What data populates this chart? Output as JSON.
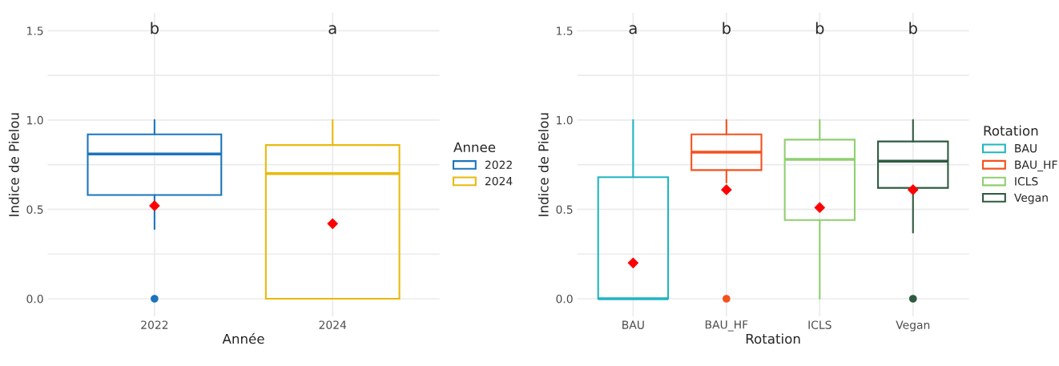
{
  "chart_data": [
    {
      "type": "box",
      "xlabel": "Année",
      "ylabel": "Indice de Pielou",
      "legend_title": "Annee",
      "legend": "right",
      "grid": true,
      "categories": [
        "2022",
        "2024"
      ],
      "series": [
        {
          "name": "2022",
          "color": "#1b75bc",
          "boxes": [
            {
              "low": 0.39,
              "q1": 0.58,
              "median": 0.81,
              "q3": 0.92,
              "high": 1.0,
              "mean": 0.52,
              "outliers": [
                0
              ]
            },
            null
          ]
        },
        {
          "name": "2024",
          "color": "#e8b90f",
          "boxes": [
            null,
            {
              "low": 0,
              "q1": 0,
              "median": 0.7,
              "q3": 0.86,
              "high": 1.0,
              "mean": 0.42
            }
          ]
        }
      ],
      "ylim": [
        -0.1,
        1.6
      ],
      "yticks": [
        {
          "value": 0,
          "label": "0.0"
        },
        {
          "value": 0.25,
          "label": null
        },
        {
          "value": 0.5,
          "label": "0.5"
        },
        {
          "value": 0.75,
          "label": null
        },
        {
          "value": 1,
          "label": "1.0"
        },
        {
          "value": 1.25,
          "label": null
        },
        {
          "value": 1.5,
          "label": "1.5"
        }
      ],
      "annotations": [
        "b",
        "a"
      ]
    },
    {
      "type": "box",
      "xlabel": "Rotation",
      "ylabel": "Indice de Pielou",
      "legend_title": "Rotation",
      "legend": "right",
      "grid": true,
      "categories": [
        "BAU",
        "BAU_HF",
        "ICLS",
        "Vegan"
      ],
      "series": [
        {
          "name": "BAU",
          "color": "#1fb5c1",
          "boxes": [
            {
              "low": 0,
              "q1": 0,
              "median": 0,
              "q3": 0.68,
              "high": 1.0,
              "mean": 0.2
            },
            null,
            null,
            null
          ]
        },
        {
          "name": "BAU_HF",
          "color": "#f4511e",
          "boxes": [
            null,
            {
              "low": 0.65,
              "q1": 0.72,
              "median": 0.82,
              "q3": 0.92,
              "high": 1.0,
              "mean": 0.61,
              "outliers": [
                0
              ]
            },
            null,
            null
          ]
        },
        {
          "name": "ICLS",
          "color": "#8fcf6f",
          "boxes": [
            null,
            null,
            {
              "low": 0,
              "q1": 0.44,
              "median": 0.78,
              "q3": 0.89,
              "high": 1.0,
              "mean": 0.51
            },
            null
          ]
        },
        {
          "name": "Vegan",
          "color": "#2f5a40",
          "boxes": [
            null,
            null,
            null,
            {
              "low": 0.37,
              "q1": 0.62,
              "median": 0.77,
              "q3": 0.88,
              "high": 1.0,
              "mean": 0.61,
              "outliers": [
                0
              ]
            }
          ]
        }
      ],
      "ylim": [
        -0.1,
        1.6
      ],
      "yticks": [
        {
          "value": 0,
          "label": "0.0"
        },
        {
          "value": 0.25,
          "label": null
        },
        {
          "value": 0.5,
          "label": "0.5"
        },
        {
          "value": 0.75,
          "label": null
        },
        {
          "value": 1,
          "label": "1.0"
        },
        {
          "value": 1.25,
          "label": null
        },
        {
          "value": 1.5,
          "label": "1.5"
        }
      ],
      "annotations": [
        "a",
        "b",
        "b",
        "b"
      ]
    }
  ]
}
